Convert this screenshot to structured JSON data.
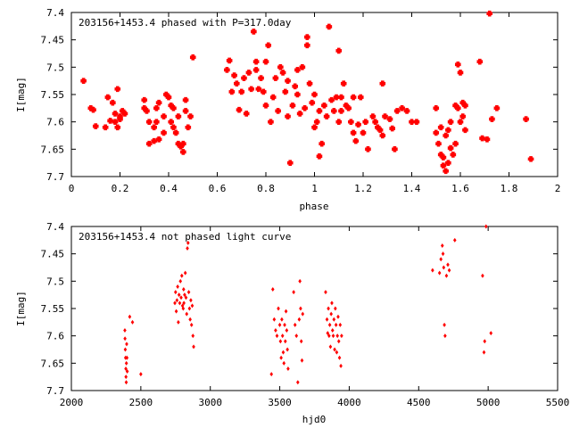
{
  "chart_data": [
    {
      "type": "scatter",
      "title": "203156+1453.4 phased with P=317.0day",
      "xlabel": "phase",
      "ylabel": "I[mag]",
      "xlim": [
        0,
        2
      ],
      "ylim": [
        7.4,
        7.7
      ],
      "y_inverted": true,
      "x_ticks": [
        "0",
        "0.2",
        "0.4",
        "0.6",
        "0.8",
        "1",
        "1.2",
        "1.4",
        "1.6",
        "1.8",
        "2"
      ],
      "y_ticks": [
        "7.4",
        "7.45",
        "7.5",
        "7.55",
        "7.6",
        "7.65",
        "7.7"
      ],
      "marker_color": "#ff0000",
      "grid": false,
      "points": [
        [
          0.05,
          7.525
        ],
        [
          0.08,
          7.575
        ],
        [
          0.09,
          7.578
        ],
        [
          0.1,
          7.608
        ],
        [
          0.14,
          7.61
        ],
        [
          0.15,
          7.555
        ],
        [
          0.16,
          7.598
        ],
        [
          0.17,
          7.565
        ],
        [
          0.18,
          7.6
        ],
        [
          0.18,
          7.585
        ],
        [
          0.19,
          7.54
        ],
        [
          0.19,
          7.61
        ],
        [
          0.2,
          7.59
        ],
        [
          0.2,
          7.595
        ],
        [
          0.21,
          7.58
        ],
        [
          0.22,
          7.585
        ],
        [
          0.3,
          7.56
        ],
        [
          0.3,
          7.575
        ],
        [
          0.31,
          7.58
        ],
        [
          0.32,
          7.6
        ],
        [
          0.32,
          7.64
        ],
        [
          0.34,
          7.61
        ],
        [
          0.34,
          7.635
        ],
        [
          0.35,
          7.6
        ],
        [
          0.35,
          7.575
        ],
        [
          0.36,
          7.632
        ],
        [
          0.36,
          7.565
        ],
        [
          0.38,
          7.62
        ],
        [
          0.38,
          7.59
        ],
        [
          0.39,
          7.55
        ],
        [
          0.4,
          7.555
        ],
        [
          0.41,
          7.57
        ],
        [
          0.41,
          7.6
        ],
        [
          0.42,
          7.61
        ],
        [
          0.42,
          7.575
        ],
        [
          0.43,
          7.62
        ],
        [
          0.44,
          7.59
        ],
        [
          0.44,
          7.64
        ],
        [
          0.45,
          7.645
        ],
        [
          0.46,
          7.655
        ],
        [
          0.46,
          7.64
        ],
        [
          0.47,
          7.58
        ],
        [
          0.47,
          7.56
        ],
        [
          0.48,
          7.61
        ],
        [
          0.49,
          7.59
        ],
        [
          0.5,
          7.482
        ],
        [
          0.64,
          7.505
        ],
        [
          0.65,
          7.488
        ],
        [
          0.66,
          7.545
        ],
        [
          0.67,
          7.515
        ],
        [
          0.68,
          7.53
        ],
        [
          0.69,
          7.578
        ],
        [
          0.7,
          7.545
        ],
        [
          0.71,
          7.52
        ],
        [
          0.72,
          7.585
        ],
        [
          0.73,
          7.51
        ],
        [
          0.74,
          7.54
        ],
        [
          0.75,
          7.435
        ],
        [
          0.76,
          7.49
        ],
        [
          0.76,
          7.505
        ],
        [
          0.77,
          7.54
        ],
        [
          0.78,
          7.52
        ],
        [
          0.79,
          7.545
        ],
        [
          0.8,
          7.49
        ],
        [
          0.8,
          7.57
        ],
        [
          0.81,
          7.46
        ],
        [
          0.82,
          7.6
        ],
        [
          0.83,
          7.555
        ],
        [
          0.84,
          7.52
        ],
        [
          0.85,
          7.58
        ],
        [
          0.86,
          7.5
        ],
        [
          0.87,
          7.51
        ],
        [
          0.88,
          7.545
        ],
        [
          0.89,
          7.59
        ],
        [
          0.89,
          7.525
        ],
        [
          0.9,
          7.675
        ],
        [
          0.91,
          7.57
        ],
        [
          0.92,
          7.535
        ],
        [
          0.93,
          7.505
        ],
        [
          0.93,
          7.55
        ],
        [
          0.94,
          7.585
        ],
        [
          0.95,
          7.5
        ],
        [
          0.96,
          7.575
        ],
        [
          0.97,
          7.445
        ],
        [
          0.97,
          7.46
        ],
        [
          0.98,
          7.53
        ],
        [
          0.99,
          7.565
        ],
        [
          1.0,
          7.61
        ],
        [
          1.0,
          7.55
        ],
        [
          1.01,
          7.6
        ],
        [
          1.02,
          7.58
        ],
        [
          1.02,
          7.663
        ],
        [
          1.03,
          7.64
        ],
        [
          1.04,
          7.57
        ],
        [
          1.05,
          7.59
        ],
        [
          1.06,
          7.426
        ],
        [
          1.07,
          7.56
        ],
        [
          1.08,
          7.58
        ],
        [
          1.09,
          7.555
        ],
        [
          1.1,
          7.6
        ],
        [
          1.1,
          7.47
        ],
        [
          1.11,
          7.555
        ],
        [
          1.11,
          7.58
        ],
        [
          1.12,
          7.53
        ],
        [
          1.13,
          7.57
        ],
        [
          1.14,
          7.575
        ],
        [
          1.15,
          7.6
        ],
        [
          1.16,
          7.62
        ],
        [
          1.16,
          7.555
        ],
        [
          1.17,
          7.635
        ],
        [
          1.18,
          7.605
        ],
        [
          1.19,
          7.555
        ],
        [
          1.2,
          7.62
        ],
        [
          1.21,
          7.6
        ],
        [
          1.22,
          7.65
        ],
        [
          1.24,
          7.59
        ],
        [
          1.25,
          7.6
        ],
        [
          1.26,
          7.61
        ],
        [
          1.27,
          7.615
        ],
        [
          1.28,
          7.625
        ],
        [
          1.28,
          7.53
        ],
        [
          1.29,
          7.59
        ],
        [
          1.31,
          7.595
        ],
        [
          1.32,
          7.612
        ],
        [
          1.33,
          7.65
        ],
        [
          1.34,
          7.58
        ],
        [
          1.36,
          7.575
        ],
        [
          1.38,
          7.58
        ],
        [
          1.4,
          7.6
        ],
        [
          1.42,
          7.6
        ],
        [
          1.5,
          7.62
        ],
        [
          1.5,
          7.575
        ],
        [
          1.51,
          7.64
        ],
        [
          1.52,
          7.61
        ],
        [
          1.52,
          7.66
        ],
        [
          1.53,
          7.665
        ],
        [
          1.53,
          7.68
        ],
        [
          1.54,
          7.625
        ],
        [
          1.54,
          7.69
        ],
        [
          1.55,
          7.615
        ],
        [
          1.55,
          7.675
        ],
        [
          1.56,
          7.6
        ],
        [
          1.56,
          7.648
        ],
        [
          1.57,
          7.66
        ],
        [
          1.58,
          7.57
        ],
        [
          1.58,
          7.64
        ],
        [
          1.59,
          7.575
        ],
        [
          1.59,
          7.495
        ],
        [
          1.6,
          7.6
        ],
        [
          1.6,
          7.51
        ],
        [
          1.61,
          7.565
        ],
        [
          1.61,
          7.59
        ],
        [
          1.62,
          7.57
        ],
        [
          1.62,
          7.615
        ],
        [
          1.68,
          7.49
        ],
        [
          1.69,
          7.63
        ],
        [
          1.71,
          7.632
        ],
        [
          1.72,
          7.402
        ],
        [
          1.73,
          7.595
        ],
        [
          1.75,
          7.575
        ],
        [
          1.87,
          7.595
        ],
        [
          1.89,
          7.668
        ]
      ]
    },
    {
      "type": "scatter",
      "title": "203156+1453.4 not phased light curve",
      "xlabel": "hjd0",
      "ylabel": "I[mag]",
      "xlim": [
        2000,
        5500
      ],
      "ylim": [
        7.4,
        7.7
      ],
      "y_inverted": true,
      "x_ticks": [
        "2000",
        "2500",
        "3000",
        "3500",
        "4000",
        "4500",
        "5000",
        "5500"
      ],
      "y_ticks": [
        "7.4",
        "7.45",
        "7.5",
        "7.55",
        "7.6",
        "7.65",
        "7.7"
      ],
      "marker_color": "#ff0000",
      "grid": false,
      "points": [
        [
          2385,
          7.59
        ],
        [
          2386,
          7.605
        ],
        [
          2388,
          7.625
        ],
        [
          2390,
          7.64
        ],
        [
          2392,
          7.66
        ],
        [
          2393,
          7.675
        ],
        [
          2395,
          7.685
        ],
        [
          2396,
          7.65
        ],
        [
          2398,
          7.615
        ],
        [
          2400,
          7.64
        ],
        [
          2402,
          7.665
        ],
        [
          2420,
          7.565
        ],
        [
          2440,
          7.575
        ],
        [
          2500,
          7.67
        ],
        [
          2745,
          7.54
        ],
        [
          2750,
          7.52
        ],
        [
          2755,
          7.555
        ],
        [
          2760,
          7.535
        ],
        [
          2765,
          7.51
        ],
        [
          2770,
          7.575
        ],
        [
          2775,
          7.525
        ],
        [
          2780,
          7.54
        ],
        [
          2785,
          7.5
        ],
        [
          2790,
          7.53
        ],
        [
          2795,
          7.49
        ],
        [
          2800,
          7.545
        ],
        [
          2805,
          7.55
        ],
        [
          2808,
          7.515
        ],
        [
          2810,
          7.54
        ],
        [
          2815,
          7.525
        ],
        [
          2820,
          7.485
        ],
        [
          2825,
          7.53
        ],
        [
          2830,
          7.56
        ],
        [
          2835,
          7.44
        ],
        [
          2840,
          7.43
        ],
        [
          2845,
          7.52
        ],
        [
          2850,
          7.55
        ],
        [
          2855,
          7.57
        ],
        [
          2860,
          7.535
        ],
        [
          2865,
          7.58
        ],
        [
          2870,
          7.545
        ],
        [
          2875,
          7.6
        ],
        [
          2880,
          7.62
        ],
        [
          3440,
          7.67
        ],
        [
          3450,
          7.515
        ],
        [
          3460,
          7.57
        ],
        [
          3470,
          7.59
        ],
        [
          3480,
          7.6
        ],
        [
          3490,
          7.55
        ],
        [
          3500,
          7.58
        ],
        [
          3505,
          7.61
        ],
        [
          3510,
          7.64
        ],
        [
          3515,
          7.57
        ],
        [
          3520,
          7.6
        ],
        [
          3525,
          7.63
        ],
        [
          3530,
          7.65
        ],
        [
          3535,
          7.58
        ],
        [
          3540,
          7.61
        ],
        [
          3545,
          7.555
        ],
        [
          3550,
          7.59
        ],
        [
          3555,
          7.625
        ],
        [
          3560,
          7.66
        ],
        [
          3600,
          7.52
        ],
        [
          3610,
          7.58
        ],
        [
          3620,
          7.6
        ],
        [
          3630,
          7.685
        ],
        [
          3640,
          7.57
        ],
        [
          3645,
          7.5
        ],
        [
          3650,
          7.55
        ],
        [
          3655,
          7.61
        ],
        [
          3660,
          7.645
        ],
        [
          3665,
          7.56
        ],
        [
          3830,
          7.52
        ],
        [
          3840,
          7.57
        ],
        [
          3845,
          7.595
        ],
        [
          3850,
          7.55
        ],
        [
          3855,
          7.6
        ],
        [
          3860,
          7.58
        ],
        [
          3865,
          7.62
        ],
        [
          3870,
          7.56
        ],
        [
          3875,
          7.54
        ],
        [
          3880,
          7.59
        ],
        [
          3885,
          7.6
        ],
        [
          3890,
          7.57
        ],
        [
          3895,
          7.625
        ],
        [
          3900,
          7.55
        ],
        [
          3905,
          7.58
        ],
        [
          3910,
          7.63
        ],
        [
          3915,
          7.6
        ],
        [
          3920,
          7.565
        ],
        [
          3925,
          7.61
        ],
        [
          3930,
          7.64
        ],
        [
          3935,
          7.58
        ],
        [
          3940,
          7.655
        ],
        [
          3945,
          7.6
        ],
        [
          4600,
          7.48
        ],
        [
          4650,
          7.485
        ],
        [
          4660,
          7.46
        ],
        [
          4670,
          7.435
        ],
        [
          4675,
          7.45
        ],
        [
          4680,
          7.475
        ],
        [
          4685,
          7.58
        ],
        [
          4690,
          7.6
        ],
        [
          4700,
          7.49
        ],
        [
          4710,
          7.47
        ],
        [
          4720,
          7.48
        ],
        [
          4760,
          7.425
        ],
        [
          4960,
          7.49
        ],
        [
          4970,
          7.63
        ],
        [
          4975,
          7.61
        ],
        [
          4985,
          7.4
        ],
        [
          5020,
          7.595
        ]
      ]
    }
  ]
}
